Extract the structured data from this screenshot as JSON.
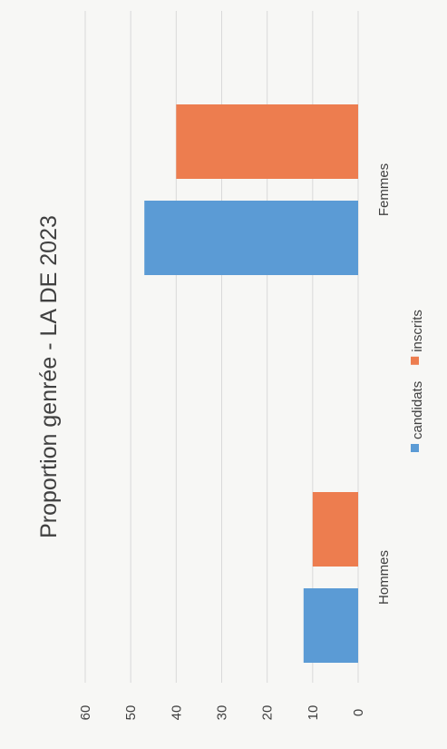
{
  "chart_data": {
    "type": "bar",
    "title": "Proportion genrée - LA DE 2023",
    "categories": [
      "Hommes",
      "Femmes"
    ],
    "series": [
      {
        "name": "candidats",
        "values": [
          12,
          47
        ],
        "color": "#5b9bd5"
      },
      {
        "name": "inscrits",
        "values": [
          10,
          40
        ],
        "color": "#ed7d4f"
      }
    ],
    "ylim": [
      0,
      60
    ],
    "yticks": [
      "0",
      "10",
      "20",
      "30",
      "40",
      "50",
      "60"
    ],
    "grid": true,
    "legend_position": "bottom",
    "orientation": "rotated-90"
  }
}
